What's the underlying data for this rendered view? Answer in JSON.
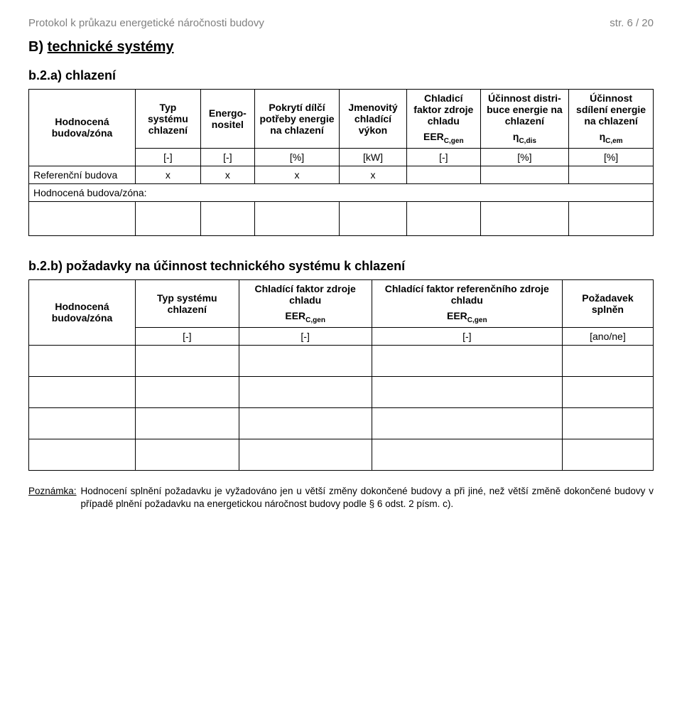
{
  "header": {
    "left": "Protokol k průkazu energetické náročnosti budovy",
    "right": "str. 6 / 20"
  },
  "heading_prefix": "B) ",
  "heading_underline": "technické systémy",
  "section_a": {
    "title": "b.2.a) chlazení",
    "row_label": "Hodnocená budova/zóna",
    "cols": {
      "c1": "Typ systému chlazení",
      "c2": "Energo­nositel",
      "c3": "Pokrytí dílčí potřeby energie na chlaze­ní",
      "c4": "Jmeno­vitý chladící výkon",
      "c5_line1": "Chladi­cí faktor zdroje chladu",
      "c5_line2_html": "EER<sub>C,gen</sub>",
      "c6_line1": "Účinnost distri­buce energie na chlazení",
      "c6_line2_html": "η<sub>C,dis</sub>",
      "c7_line1": "Účinnost sdílení energie na chlazení",
      "c7_line2_html": "η<sub>C,em</sub>"
    },
    "units": [
      "[-]",
      "[-]",
      "[%]",
      "[kW]",
      "[-]",
      "[%]",
      "[%]"
    ],
    "ref_row_label": "Referenční budova",
    "ref_row": [
      "x",
      "x",
      "x",
      "x",
      "",
      "",
      ""
    ],
    "hodn_row_full": "Hodnocená budova/zóna:"
  },
  "section_b": {
    "title": "b.2.b) požadavky na účinnost technického systému k chlazení",
    "row_label": "Hodnocená budova/zóna",
    "cols": {
      "c1": "Typ systému chlazení",
      "c2_line1": "Chladící faktor zdroje chladu",
      "c2_line2_html": "EER<sub>C,gen</sub>",
      "c3_line1": "Chladící faktor referenčního zdroje chladu",
      "c3_line2_html": "EER<sub>C,gen</sub>",
      "c4": "Požadavek splněn"
    },
    "units": [
      "[-]",
      "[-]",
      "[-]",
      "[ano/ne]"
    ]
  },
  "note": {
    "label": "Poznámka:",
    "body": "Hodnocení splnění požadavku je vyžadováno jen u větší změny dokončené budovy a při jiné, než větší změně dokončené budovy v případě plnění požadavku na energetickou náročnost budovy podle § 6 odst. 2 písm. c)."
  }
}
